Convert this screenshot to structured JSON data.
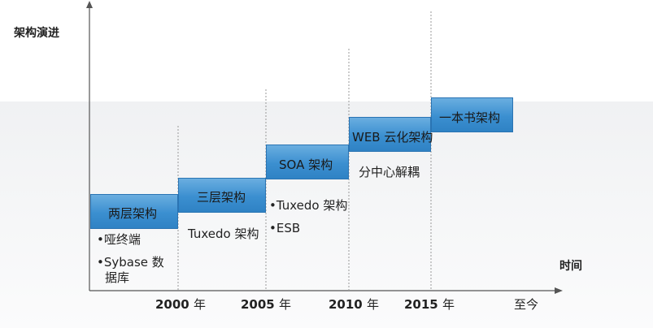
{
  "diagram": {
    "y_axis_title": "架构演进",
    "x_axis_title": "时间",
    "years": [
      {
        "year": "2000",
        "unit": "年"
      },
      {
        "year": "2005",
        "unit": "年"
      },
      {
        "year": "2010",
        "unit": "年"
      },
      {
        "year": "2015",
        "unit": "年"
      }
    ],
    "end_label": "至今",
    "stages": [
      {
        "name": "两层架构",
        "notes": [
          "•哑终端",
          "•Sybase 数",
          "据库"
        ]
      },
      {
        "name": "三层架构",
        "notes": [
          "Tuxedo 架构"
        ]
      },
      {
        "name": "SOA 架构",
        "notes": [
          "•Tuxedo 架构",
          "•ESB"
        ]
      },
      {
        "name": "WEB 云化架构",
        "notes": [
          "分中心解耦"
        ]
      },
      {
        "name": "一本书架构",
        "notes": []
      }
    ],
    "colors": {
      "box_fill": "#3b8fd0",
      "box_border": "#2a74b3",
      "axis": "#555555",
      "guide": "#999999"
    }
  }
}
